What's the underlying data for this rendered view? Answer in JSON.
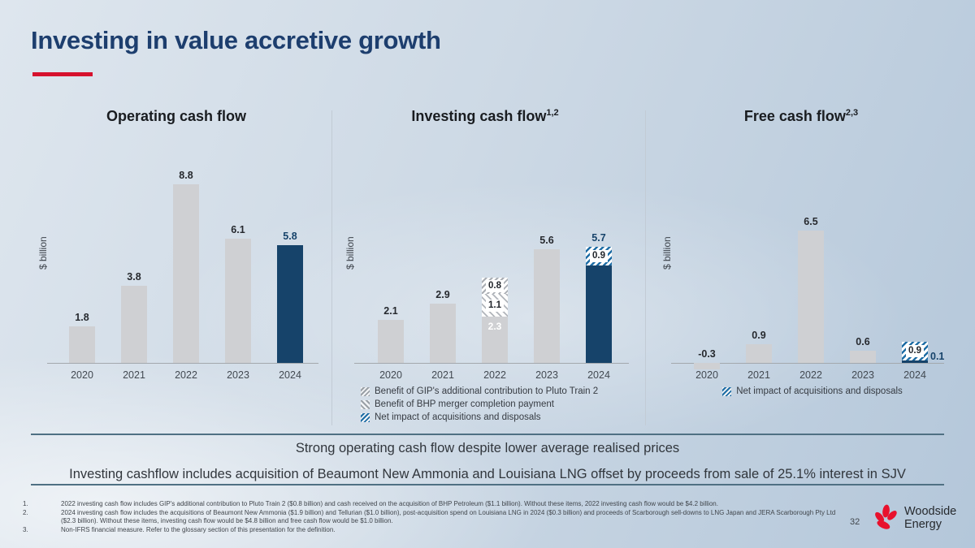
{
  "header": {
    "title": "Investing in value accretive growth"
  },
  "chart_data": [
    {
      "type": "bar",
      "title": "Operating cash flow",
      "sup": "",
      "ylabel": "$ billion",
      "categories": [
        "2020",
        "2021",
        "2022",
        "2023",
        "2024"
      ],
      "bars": [
        {
          "year": "2020",
          "label": "1.8",
          "segments": [
            {
              "v": 1.8,
              "style": "gray"
            }
          ]
        },
        {
          "year": "2021",
          "label": "3.8",
          "segments": [
            {
              "v": 3.8,
              "style": "gray"
            }
          ]
        },
        {
          "year": "2022",
          "label": "8.8",
          "segments": [
            {
              "v": 8.8,
              "style": "gray"
            }
          ]
        },
        {
          "year": "2023",
          "label": "6.1",
          "segments": [
            {
              "v": 6.1,
              "style": "gray"
            }
          ]
        },
        {
          "year": "2024",
          "label": "5.8",
          "label_style": "navy",
          "segments": [
            {
              "v": 5.8,
              "style": "navy"
            }
          ]
        }
      ],
      "legend": [],
      "legend_align": "left"
    },
    {
      "type": "bar",
      "title": "Investing cash flow",
      "sup": "1,2",
      "ylabel": "$ billion",
      "categories": [
        "2020",
        "2021",
        "2022",
        "2023",
        "2024"
      ],
      "bars": [
        {
          "year": "2020",
          "label": "2.1",
          "segments": [
            {
              "v": 2.1,
              "style": "gray"
            }
          ]
        },
        {
          "year": "2021",
          "label": "2.9",
          "segments": [
            {
              "v": 2.9,
              "style": "gray"
            }
          ]
        },
        {
          "year": "2022",
          "label": "",
          "segments": [
            {
              "v": 2.3,
              "style": "gray",
              "inner": "2.3",
              "inner_style": "white-text"
            },
            {
              "v": 1.1,
              "style": "hatch-gray-back",
              "inner": "1.1",
              "inner_style": "box"
            },
            {
              "v": 0.8,
              "style": "hatch-gray-fwd",
              "inner": "0.8",
              "inner_style": "box"
            }
          ]
        },
        {
          "year": "2023",
          "label": "5.6",
          "segments": [
            {
              "v": 5.6,
              "style": "gray"
            }
          ]
        },
        {
          "year": "2024",
          "label": "5.7",
          "label_style": "navy",
          "segments": [
            {
              "v": 4.8,
              "style": "navy"
            },
            {
              "v": 0.9,
              "style": "hatch-blue",
              "inner": "0.9",
              "inner_style": "box"
            }
          ]
        }
      ],
      "legend": [
        {
          "marker": "hatch-gray-fwd",
          "text": "Benefit of GIP's additional contribution to Pluto Train 2"
        },
        {
          "marker": "hatch-gray-back",
          "text": "Benefit of BHP merger completion payment"
        },
        {
          "marker": "hatch-blue",
          "text": "Net impact of acquisitions and disposals"
        }
      ],
      "legend_align": "left"
    },
    {
      "type": "bar",
      "title": "Free cash flow",
      "sup": "2,3",
      "ylabel": "$ billion",
      "categories": [
        "2020",
        "2021",
        "2022",
        "2023",
        "2024"
      ],
      "bars": [
        {
          "year": "2020",
          "label": "-0.3",
          "segments": [
            {
              "v": -0.3,
              "style": "gray"
            }
          ]
        },
        {
          "year": "2021",
          "label": "0.9",
          "segments": [
            {
              "v": 0.9,
              "style": "gray"
            }
          ]
        },
        {
          "year": "2022",
          "label": "6.5",
          "segments": [
            {
              "v": 6.5,
              "style": "gray"
            }
          ]
        },
        {
          "year": "2023",
          "label": "0.6",
          "segments": [
            {
              "v": 0.6,
              "style": "gray"
            }
          ]
        },
        {
          "year": "2024",
          "label": "0.1",
          "label_style": "navy",
          "label_pos": "right",
          "segments": [
            {
              "v": 0.1,
              "style": "navy"
            },
            {
              "v": 0.9,
              "style": "hatch-blue",
              "inner": "0.9",
              "inner_style": "box"
            }
          ]
        }
      ],
      "legend": [
        {
          "marker": "hatch-blue",
          "text": "Net impact of acquisitions and disposals"
        }
      ],
      "legend_align": "center"
    }
  ],
  "statements": {
    "line1": "Strong operating cash flow despite lower average realised prices",
    "line2": "Investing cashflow includes acquisition of Beaumont New Ammonia and Louisiana LNG offset by proceeds from sale of 25.1% interest in SJV"
  },
  "footnotes": [
    {
      "num": "1.",
      "text": "2022 investing cash flow includes GIP's additional contribution to Pluto Train 2 ($0.8 billion) and cash received on the acquisition of BHP Petroleum ($1.1 billion). Without these items, 2022 investing cash flow would be $4.2 billion."
    },
    {
      "num": "2.",
      "text": "2024 investing cash flow includes the acquisitions of Beaumont New Ammonia ($1.9 billion) and Tellurian ($1.0 billion), post-acquisition spend on Louisiana LNG in 2024 ($0.3 billion) and proceeds of Scarborough sell-downs to LNG Japan and JERA Scarborough Pty Ltd ($2.3 billion). Without these items, investing cash flow would be $4.8 billion and free cash flow would be $1.0 billion."
    },
    {
      "num": "3.",
      "text": "Non-IFRS financial measure. Refer to the glossary section of this presentation for the definition."
    }
  ],
  "page_number": "32",
  "logo": {
    "line1": "Woodside",
    "line2": "Energy"
  },
  "colors": {
    "navy": "#16436a",
    "gray": "#cfd0d3",
    "hatch_blue": "#1e6da5",
    "accent_red": "#d6112d"
  }
}
